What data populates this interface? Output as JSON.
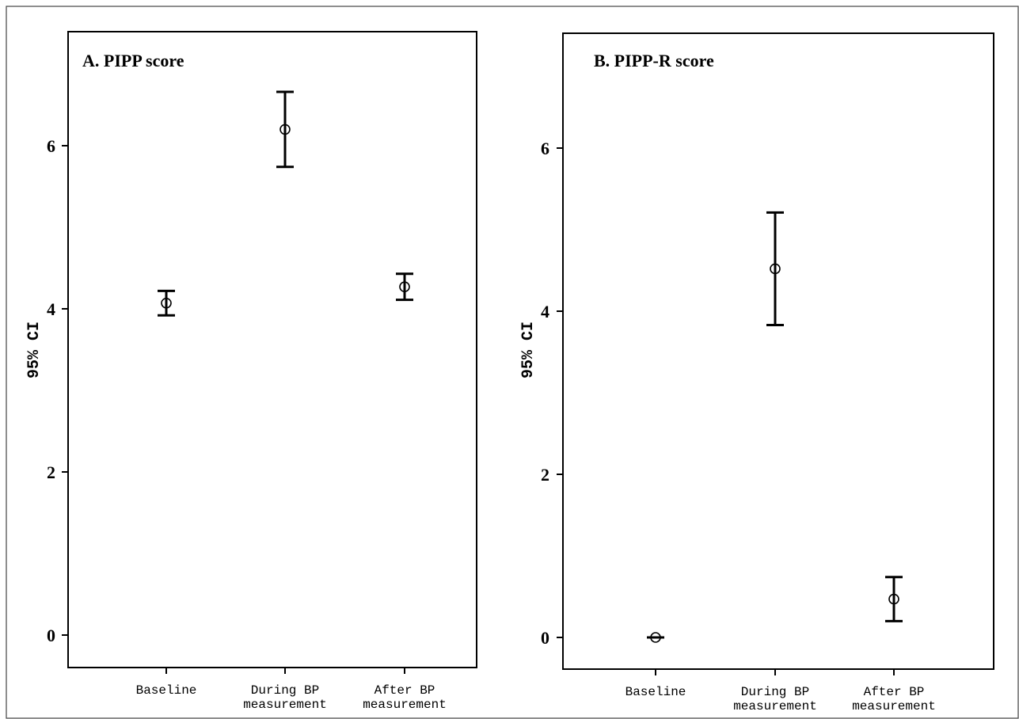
{
  "chart_data": [
    {
      "type": "errorbar",
      "title": "A. PIPP score",
      "ylabel": "95% CI",
      "xlabel": "",
      "categories": [
        [
          "Baseline"
        ],
        [
          "During BP",
          "measurement"
        ],
        [
          "After BP",
          "measurement"
        ]
      ],
      "points": [
        {
          "mean": 4.07,
          "lower": 3.92,
          "upper": 4.22
        },
        {
          "mean": 6.2,
          "lower": 5.74,
          "upper": 6.66
        },
        {
          "mean": 4.27,
          "lower": 4.11,
          "upper": 4.43
        }
      ],
      "ylim": [
        -0.4,
        7.4
      ],
      "yticks": [
        0,
        2,
        4,
        6
      ],
      "grid": false
    },
    {
      "type": "errorbar",
      "title": "B. PIPP-R score",
      "ylabel": "95% CI",
      "xlabel": "",
      "categories": [
        [
          "Baseline"
        ],
        [
          "During BP",
          "measurement"
        ],
        [
          "After BP",
          "measurement"
        ]
      ],
      "points": [
        {
          "mean": 0.0,
          "lower": 0.0,
          "upper": 0.0
        },
        {
          "mean": 4.52,
          "lower": 3.83,
          "upper": 5.21
        },
        {
          "mean": 0.47,
          "lower": 0.2,
          "upper": 0.74
        }
      ],
      "ylim": [
        -0.4,
        7.4
      ],
      "yticks": [
        0,
        2,
        4,
        6
      ],
      "grid": false
    }
  ]
}
